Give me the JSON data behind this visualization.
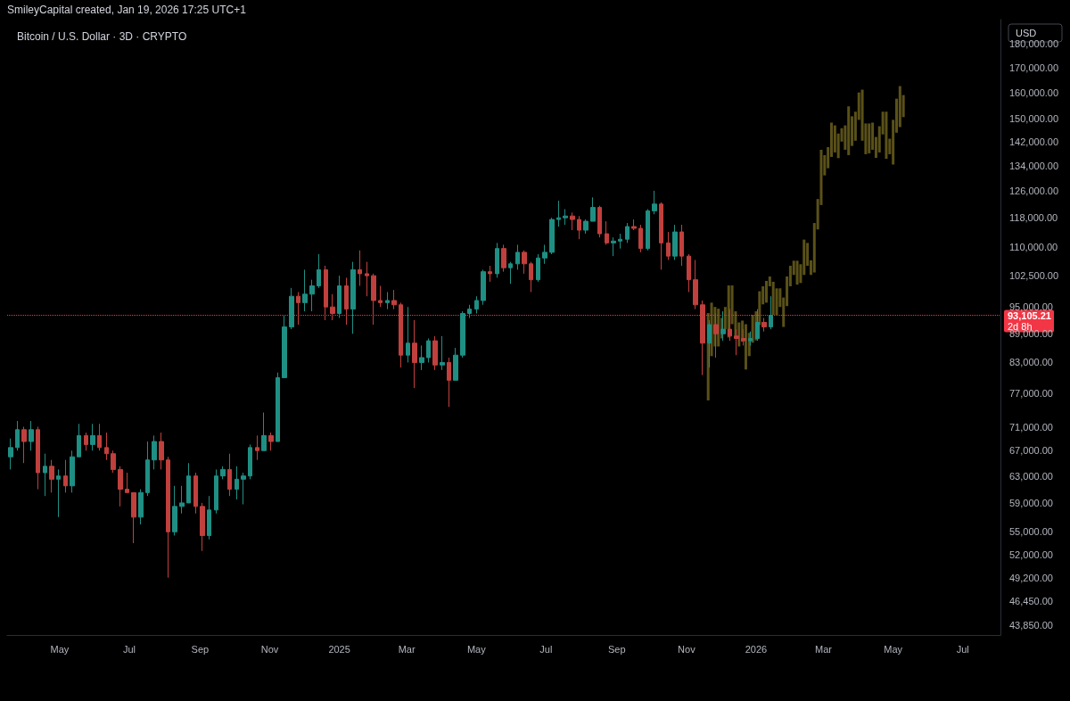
{
  "chart_data": {
    "type": "candlestick",
    "title": "Bitcoin / U.S. Dollar · 3D · CRYPTO",
    "ylabel": "USD",
    "annotations": [
      "SmileyCapital created, Jan 19, 2026 17:25 UTC+1",
      "2d 8h"
    ],
    "log": "y",
    "xlim": [
      "2024-03-16",
      "2026-08-03"
    ],
    "xticks": [
      {
        "value": "2024-05-01",
        "label": "May"
      },
      {
        "value": "2024-07-01",
        "label": "Jul"
      },
      {
        "value": "2024-09-01",
        "label": "Sep"
      },
      {
        "value": "2024-11-01",
        "label": "Nov"
      },
      {
        "value": "2025-01-01",
        "label": "2025"
      },
      {
        "value": "2025-03-01",
        "label": "Mar"
      },
      {
        "value": "2025-05-01",
        "label": "May"
      },
      {
        "value": "2025-07-01",
        "label": "Jul"
      },
      {
        "value": "2025-09-01",
        "label": "Sep"
      },
      {
        "value": "2025-11-01",
        "label": "Nov"
      },
      {
        "value": "2026-01-01",
        "label": "2026"
      },
      {
        "value": "2026-03-01",
        "label": "Mar"
      },
      {
        "value": "2026-05-01",
        "label": "May"
      },
      {
        "value": "2026-07-01",
        "label": "Jul"
      }
    ],
    "ylim": [
      42800,
      191000
    ],
    "yticks": [
      {
        "value": 180000,
        "label": "180,000.00"
      },
      {
        "value": 170000,
        "label": "170,000.00"
      },
      {
        "value": 160000,
        "label": "160,000.00"
      },
      {
        "value": 150000,
        "label": "150,000.00"
      },
      {
        "value": 142000,
        "label": "142,000.00"
      },
      {
        "value": 134000,
        "label": "134,000.00"
      },
      {
        "value": 126000,
        "label": "126,000.00"
      },
      {
        "value": 118000,
        "label": "118,000.00"
      },
      {
        "value": 110000,
        "label": "110,000.00"
      },
      {
        "value": 102500,
        "label": "102,500.00"
      },
      {
        "value": 95000,
        "label": "95,000.00"
      },
      {
        "value": 89000,
        "label": "89,000.00"
      },
      {
        "value": 83000,
        "label": "83,000.00"
      },
      {
        "value": 77000,
        "label": "77,000.00"
      },
      {
        "value": 71000,
        "label": "71,000.00"
      },
      {
        "value": 67000,
        "label": "67,000.00"
      },
      {
        "value": 63000,
        "label": "63,000.00"
      },
      {
        "value": 59000,
        "label": "59,000.00"
      },
      {
        "value": 55000,
        "label": "55,000.00"
      },
      {
        "value": 52000,
        "label": "52,000.00"
      },
      {
        "value": 49200,
        "label": "49,200.00"
      },
      {
        "value": 46450,
        "label": "46,450.00"
      },
      {
        "value": 43850,
        "label": "43,850.00"
      }
    ],
    "ref_lines": [
      {
        "axis": "y",
        "value": 93105.21,
        "label": "93,105.21",
        "color": "#f23645",
        "line_style": "dotted"
      }
    ],
    "series": [
      {
        "x": [
          "2024-03-19",
          "2024-03-25",
          "2024-03-31",
          "2024-04-06",
          "2024-04-12",
          "2024-04-18",
          "2024-04-24",
          "2024-04-30",
          "2024-05-06",
          "2024-05-12",
          "2024-05-18",
          "2024-05-24",
          "2024-05-30",
          "2024-06-05",
          "2024-06-11",
          "2024-06-17",
          "2024-06-23",
          "2024-06-29",
          "2024-07-05",
          "2024-07-11",
          "2024-07-17",
          "2024-07-23",
          "2024-07-29",
          "2024-08-04",
          "2024-08-10",
          "2024-08-16",
          "2024-08-22",
          "2024-08-28",
          "2024-09-03",
          "2024-09-09",
          "2024-09-15",
          "2024-09-21",
          "2024-09-27",
          "2024-10-03",
          "2024-10-09",
          "2024-10-15",
          "2024-10-21",
          "2024-10-27",
          "2024-11-02",
          "2024-11-08",
          "2024-11-14",
          "2024-11-20",
          "2024-11-26",
          "2024-12-02",
          "2024-12-08",
          "2024-12-14",
          "2024-12-20",
          "2024-12-26",
          "2025-01-01",
          "2025-01-07",
          "2025-01-13",
          "2025-01-19",
          "2025-01-25",
          "2025-01-31",
          "2025-02-06",
          "2025-02-12",
          "2025-02-18",
          "2025-02-24",
          "2025-03-02",
          "2025-03-08",
          "2025-03-14",
          "2025-03-20",
          "2025-03-26",
          "2025-04-01",
          "2025-04-07",
          "2025-04-13",
          "2025-04-19",
          "2025-04-25",
          "2025-05-01",
          "2025-05-07",
          "2025-05-13",
          "2025-05-19",
          "2025-05-25",
          "2025-05-31",
          "2025-06-06",
          "2025-06-12",
          "2025-06-18",
          "2025-06-24",
          "2025-06-30",
          "2025-07-06",
          "2025-07-12",
          "2025-07-18",
          "2025-07-24",
          "2025-07-30",
          "2025-08-05",
          "2025-08-11",
          "2025-08-17",
          "2025-08-23",
          "2025-08-29",
          "2025-09-04",
          "2025-09-10",
          "2025-09-16",
          "2025-09-22",
          "2025-09-28",
          "2025-10-04",
          "2025-10-10",
          "2025-10-16",
          "2025-10-22",
          "2025-10-28",
          "2025-11-03",
          "2025-11-09",
          "2025-11-15",
          "2025-11-21",
          "2025-11-27",
          "2025-12-03",
          "2025-12-09",
          "2025-12-15",
          "2025-12-21",
          "2025-12-27",
          "2026-01-02",
          "2026-01-08",
          "2026-01-14"
        ],
        "ohlc": [
          [
            66000,
            69000,
            64000,
            67500
          ],
          [
            67500,
            72000,
            67000,
            70500
          ],
          [
            70500,
            71000,
            65000,
            68500
          ],
          [
            68500,
            72000,
            67000,
            70500
          ],
          [
            70500,
            71000,
            61000,
            63500
          ],
          [
            63500,
            66500,
            60000,
            64500
          ],
          [
            64500,
            65500,
            60500,
            62500
          ],
          [
            62500,
            64000,
            57000,
            63000
          ],
          [
            63000,
            65500,
            60500,
            61500
          ],
          [
            61500,
            67000,
            60500,
            66000
          ],
          [
            66000,
            71500,
            66000,
            69500
          ],
          [
            69500,
            70000,
            67000,
            68000
          ],
          [
            68000,
            71500,
            67000,
            69500
          ],
          [
            69500,
            71500,
            67000,
            67500
          ],
          [
            67500,
            70000,
            65500,
            66500
          ],
          [
            66500,
            67000,
            63500,
            64000
          ],
          [
            64000,
            64500,
            58500,
            61000
          ],
          [
            61000,
            63500,
            60500,
            60500
          ],
          [
            60500,
            60500,
            53500,
            57000
          ],
          [
            57000,
            61000,
            56000,
            60500
          ],
          [
            60500,
            68500,
            60000,
            65500
          ],
          [
            65500,
            69500,
            64000,
            68500
          ],
          [
            68500,
            70000,
            64000,
            65500
          ],
          [
            65500,
            66000,
            49200,
            55000
          ],
          [
            55000,
            61500,
            54500,
            58500
          ],
          [
            58500,
            61500,
            57500,
            59000
          ],
          [
            59000,
            65000,
            59000,
            63000
          ],
          [
            63000,
            63500,
            57500,
            58500
          ],
          [
            58500,
            59000,
            52500,
            54500
          ],
          [
            54500,
            60000,
            54000,
            58000
          ],
          [
            58000,
            64000,
            57500,
            63000
          ],
          [
            63000,
            64500,
            62500,
            64000
          ],
          [
            64000,
            66500,
            60000,
            61000
          ],
          [
            61000,
            64500,
            59500,
            62500
          ],
          [
            62500,
            63500,
            58800,
            63000
          ],
          [
            63000,
            68000,
            62500,
            67500
          ],
          [
            67500,
            69500,
            65500,
            67000
          ],
          [
            67000,
            73500,
            67000,
            69500
          ],
          [
            69500,
            70000,
            67000,
            68500
          ],
          [
            68500,
            81000,
            68500,
            80000
          ],
          [
            80000,
            93000,
            80000,
            90500
          ],
          [
            90500,
            99500,
            90000,
            97500
          ],
          [
            97500,
            98500,
            91000,
            96000
          ],
          [
            96000,
            104000,
            94000,
            98000
          ],
          [
            98000,
            101500,
            94000,
            100000
          ],
          [
            100000,
            108000,
            99500,
            104000
          ],
          [
            104000,
            105000,
            92000,
            95000
          ],
          [
            95000,
            98000,
            92000,
            93500
          ],
          [
            93500,
            102500,
            92500,
            100000
          ],
          [
            100000,
            102000,
            91000,
            94500
          ],
          [
            94500,
            106000,
            89000,
            104000
          ],
          [
            104000,
            109000,
            100000,
            103000
          ],
          [
            103000,
            106000,
            97500,
            102500
          ],
          [
            102500,
            103000,
            91000,
            96500
          ],
          [
            96500,
            100000,
            95000,
            96000
          ],
          [
            96000,
            98500,
            94500,
            96500
          ],
          [
            96500,
            99000,
            94500,
            95500
          ],
          [
            95500,
            96000,
            82000,
            84500
          ],
          [
            84500,
            95000,
            83000,
            87000
          ],
          [
            87000,
            92000,
            78000,
            83000
          ],
          [
            83000,
            86500,
            81500,
            84000
          ],
          [
            84000,
            88000,
            83000,
            87500
          ],
          [
            87500,
            88500,
            81500,
            82500
          ],
          [
            82500,
            88500,
            81500,
            83000
          ],
          [
            83000,
            84000,
            74500,
            79500
          ],
          [
            79500,
            86000,
            79500,
            84500
          ],
          [
            84500,
            94000,
            84000,
            93500
          ],
          [
            93500,
            95500,
            92500,
            94500
          ],
          [
            94500,
            97500,
            93500,
            96500
          ],
          [
            96500,
            104000,
            95500,
            103500
          ],
          [
            103500,
            105000,
            101000,
            103000
          ],
          [
            103000,
            111000,
            102000,
            109500
          ],
          [
            109500,
            110500,
            103500,
            104500
          ],
          [
            104500,
            106000,
            100500,
            105500
          ],
          [
            105500,
            110500,
            104000,
            108500
          ],
          [
            108500,
            109000,
            103000,
            105500
          ],
          [
            105500,
            106000,
            98500,
            101500
          ],
          [
            101500,
            108000,
            101000,
            107000
          ],
          [
            107000,
            110500,
            105500,
            108500
          ],
          [
            108500,
            118000,
            108000,
            117500
          ],
          [
            117500,
            123000,
            115500,
            118000
          ],
          [
            118000,
            120500,
            116000,
            118500
          ],
          [
            118500,
            119500,
            114500,
            117500
          ],
          [
            117500,
            118500,
            112000,
            114500
          ],
          [
            114500,
            117500,
            113500,
            117000
          ],
          [
            117000,
            124000,
            117000,
            121000
          ],
          [
            121000,
            121500,
            112500,
            113500
          ],
          [
            113500,
            117000,
            110500,
            111000
          ],
          [
            111000,
            112500,
            107500,
            111500
          ],
          [
            111500,
            113500,
            109500,
            112000
          ],
          [
            112000,
            116500,
            111000,
            115500
          ],
          [
            115500,
            117500,
            114500,
            115000
          ],
          [
            115000,
            116000,
            108500,
            109500
          ],
          [
            109500,
            120500,
            109000,
            120000
          ],
          [
            120000,
            126000,
            119000,
            122000
          ],
          [
            122000,
            122500,
            104000,
            111000
          ],
          [
            111000,
            114000,
            106500,
            107500
          ],
          [
            107500,
            116000,
            106500,
            114000
          ],
          [
            114000,
            116000,
            105000,
            107500
          ],
          [
            107500,
            108000,
            98500,
            101500
          ],
          [
            101500,
            106500,
            94500,
            95500
          ],
          [
            95500,
            96500,
            80500,
            87000
          ],
          [
            87000,
            92000,
            82000,
            91000
          ],
          [
            91000,
            93500,
            84000,
            89000
          ],
          [
            89000,
            94000,
            87500,
            90000
          ],
          [
            90000,
            94500,
            87500,
            88500
          ],
          [
            88500,
            90000,
            84500,
            88000
          ],
          [
            88000,
            90000,
            86500,
            87500
          ],
          [
            87500,
            89500,
            86500,
            88000
          ],
          [
            88000,
            94500,
            87500,
            91500
          ],
          [
            91500,
            92500,
            89500,
            90500
          ],
          [
            90500,
            97500,
            90000,
            93105.21
          ]
        ],
        "colors": [
          "#1f8f84",
          "#1f8f84",
          "#c0403d",
          "#1f8f84",
          "#c0403d",
          "#1f8f84",
          "#c0403d",
          "#1f8f84",
          "#c0403d",
          "#1f8f84",
          "#1f8f84",
          "#c0403d",
          "#1f8f84",
          "#c0403d",
          "#c0403d",
          "#c0403d",
          "#c0403d",
          "#c0403d",
          "#c0403d",
          "#1f8f84",
          "#1f8f84",
          "#1f8f84",
          "#c0403d",
          "#c0403d",
          "#1f8f84",
          "#1f8f84",
          "#1f8f84",
          "#c0403d",
          "#c0403d",
          "#1f8f84",
          "#1f8f84",
          "#1f8f84",
          "#c0403d",
          "#1f8f84",
          "#1f8f84",
          "#1f8f84",
          "#c0403d",
          "#1f8f84",
          "#c0403d",
          "#1f8f84",
          "#1f8f84",
          "#1f8f84",
          "#c0403d",
          "#1f8f84",
          "#1f8f84",
          "#1f8f84",
          "#c0403d",
          "#c0403d",
          "#1f8f84",
          "#c0403d",
          "#1f8f84",
          "#c0403d",
          "#c0403d",
          "#c0403d",
          "#c0403d",
          "#1f8f84",
          "#c0403d",
          "#c0403d",
          "#1f8f84",
          "#c0403d",
          "#1f8f84",
          "#1f8f84",
          "#c0403d",
          "#1f8f84",
          "#c0403d",
          "#1f8f84",
          "#1f8f84",
          "#1f8f84",
          "#1f8f84",
          "#1f8f84",
          "#c0403d",
          "#1f8f84",
          "#c0403d",
          "#1f8f84",
          "#1f8f84",
          "#c0403d",
          "#c0403d",
          "#1f8f84",
          "#1f8f84",
          "#1f8f84",
          "#1f8f84",
          "#1f8f84",
          "#c0403d",
          "#c0403d",
          "#1f8f84",
          "#1f8f84",
          "#c0403d",
          "#c0403d",
          "#1f8f84",
          "#1f8f84",
          "#1f8f84",
          "#c0403d",
          "#c0403d",
          "#1f8f84",
          "#1f8f84",
          "#c0403d",
          "#c0403d",
          "#1f8f84",
          "#c0403d",
          "#c0403d",
          "#c0403d",
          "#c0403d",
          "#1f8f84",
          "#c0403d",
          "#1f8f84",
          "#c0403d",
          "#c0403d",
          "#c0403d",
          "#1f8f84",
          "#1f8f84",
          "#c0403d",
          "#1f8f84"
        ]
      },
      {
        "type": "bar",
        "color": "#5a5118",
        "x": [
          "2025-11-20",
          "2025-11-23",
          "2025-11-26",
          "2025-11-29",
          "2025-12-02",
          "2025-12-05",
          "2025-12-08",
          "2025-12-11",
          "2025-12-14",
          "2025-12-17",
          "2025-12-20",
          "2025-12-23",
          "2025-12-26",
          "2025-12-29",
          "2026-01-01",
          "2026-01-04",
          "2026-01-07",
          "2026-01-10",
          "2026-01-13",
          "2026-01-16",
          "2026-01-19",
          "2026-01-22",
          "2026-01-25",
          "2026-01-28",
          "2026-01-31",
          "2026-02-03",
          "2026-02-06",
          "2026-02-09",
          "2026-02-12",
          "2026-02-15",
          "2026-02-18",
          "2026-02-21",
          "2026-02-24",
          "2026-02-27",
          "2026-03-02",
          "2026-03-05",
          "2026-03-08",
          "2026-03-11",
          "2026-03-14",
          "2026-03-17",
          "2026-03-20",
          "2026-03-23",
          "2026-03-26",
          "2026-03-29",
          "2026-04-01",
          "2026-04-04",
          "2026-04-07",
          "2026-04-10",
          "2026-04-13",
          "2026-04-16",
          "2026-04-19",
          "2026-04-22",
          "2026-04-25",
          "2026-04-28",
          "2026-05-01",
          "2026-05-04",
          "2026-05-07",
          "2026-05-10"
        ],
        "base": [
          75700,
          84300,
          86300,
          86300,
          88000,
          90000,
          88200,
          91100,
          88200,
          86300,
          87300,
          81600,
          84300,
          87100,
          87600,
          90900,
          95600,
          96000,
          99900,
          93200,
          93200,
          95000,
          90500,
          95200,
          99900,
          102700,
          100300,
          100700,
          102700,
          105000,
          102700,
          103300,
          114700,
          121700,
          130800,
          133100,
          136800,
          138300,
          136400,
          142000,
          139200,
          137400,
          140500,
          142300,
          149700,
          142300,
          137700,
          138000,
          139200,
          136500,
          138300,
          144500,
          136200,
          137700,
          134300,
          145100,
          147100,
          150700
        ],
        "values": [
          17900,
          11700,
          8700,
          8300,
          4500,
          5000,
          11900,
          9000,
          5800,
          5200,
          4600,
          9500,
          4900,
          6100,
          6400,
          7800,
          4300,
          5200,
          2400,
          7800,
          6200,
          4400,
          6700,
          7100,
          5100,
          3600,
          6000,
          4700,
          9200,
          6000,
          3700,
          13200,
          8800,
          17500,
          6600,
          7000,
          11900,
          9400,
          8400,
          4700,
          8500,
          17300,
          10500,
          10400,
          10300,
          18800,
          10700,
          10400,
          9500,
          7100,
          9100,
          8200,
          16500,
          5300,
          15400,
          12500,
          15400,
          8300
        ]
      }
    ]
  }
}
